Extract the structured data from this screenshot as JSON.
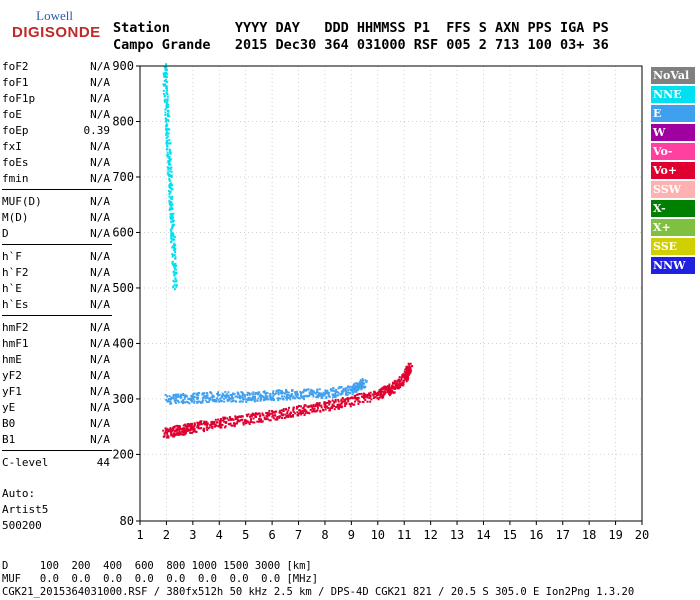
{
  "logo": {
    "line1": "Lowell",
    "line2": "DIGISONDE"
  },
  "header": {
    "row1": "Station        YYYY DAY   DDD HHMMSS P1  FFS S AXN PPS IGA PS",
    "row2": "Campo Grande   2015 Dec30 364 031000 RSF 005 2 713 100 03+ 36"
  },
  "params": [
    {
      "name": "foF2",
      "value": "N/A"
    },
    {
      "name": "foF1",
      "value": "N/A"
    },
    {
      "name": "foF1p",
      "value": "N/A"
    },
    {
      "name": "foE",
      "value": "N/A"
    },
    {
      "name": "foEp",
      "value": "0.39"
    },
    {
      "name": "fxI",
      "value": "N/A"
    },
    {
      "name": "foEs",
      "value": "N/A"
    },
    {
      "name": "fmin",
      "value": "N/A"
    },
    {
      "name": "MUF(D)",
      "value": "N/A"
    },
    {
      "name": "M(D)",
      "value": "N/A"
    },
    {
      "name": "D",
      "value": "N/A"
    },
    {
      "name": "h`F",
      "value": "N/A"
    },
    {
      "name": "h`F2",
      "value": "N/A"
    },
    {
      "name": "h`E",
      "value": "N/A"
    },
    {
      "name": "h`Es",
      "value": "N/A"
    },
    {
      "name": "hmF2",
      "value": "N/A"
    },
    {
      "name": "hmF1",
      "value": "N/A"
    },
    {
      "name": "hmE",
      "value": "N/A"
    },
    {
      "name": "yF2",
      "value": "N/A"
    },
    {
      "name": "yF1",
      "value": "N/A"
    },
    {
      "name": "yE",
      "value": "N/A"
    },
    {
      "name": "B0",
      "value": "N/A"
    },
    {
      "name": "B1",
      "value": "N/A"
    },
    {
      "name": "C-level",
      "value": "44"
    }
  ],
  "auto": {
    "line1": "Auto:",
    "line2": "Artist5",
    "line3": "500200"
  },
  "legend": [
    {
      "label": "NoVal",
      "color": "#808080"
    },
    {
      "label": "NNE",
      "color": "#00e0f0"
    },
    {
      "label": "E",
      "color": "#40a0f0"
    },
    {
      "label": "W",
      "color": "#a000a0"
    },
    {
      "label": "Vo-",
      "color": "#ff40a0"
    },
    {
      "label": "Vo+",
      "color": "#e00030"
    },
    {
      "label": "SSW",
      "color": "#ffb0b0"
    },
    {
      "label": "X-",
      "color": "#008000"
    },
    {
      "label": "X+",
      "color": "#80c040"
    },
    {
      "label": "SSE",
      "color": "#d0d000"
    },
    {
      "label": "NNW",
      "color": "#2020e0"
    }
  ],
  "footer": {
    "row1": "D     100  200  400  600  800 1000 1500 3000 [km]",
    "row2": "MUF   0.0  0.0  0.0  0.0  0.0  0.0  0.0  0.0 [MHz]",
    "file": "CGK21_2015364031000.RSF / 380fx512h 50 kHz 2.5 km / DPS-4D CGK21 821 / 20.5 S 305.0 E Ion2Png 1.3.20"
  },
  "chart_data": {
    "type": "scatter",
    "xlim": [
      1,
      20
    ],
    "ylim": [
      80,
      900
    ],
    "x_ticks": [
      1,
      2,
      3,
      4,
      5,
      6,
      7,
      8,
      9,
      10,
      11,
      12,
      13,
      14,
      15,
      16,
      17,
      18,
      19,
      20
    ],
    "y_ticks": [
      80,
      200,
      300,
      400,
      500,
      600,
      700,
      800,
      900
    ],
    "series": [
      {
        "name": "Vo+",
        "x": [
          1.9,
          2.5,
          3.0,
          4.0,
          5.0,
          6.0,
          7.0,
          8.0,
          9.0,
          10.0,
          10.5,
          11.0,
          11.2
        ],
        "y": [
          240,
          245,
          250,
          258,
          265,
          272,
          280,
          288,
          298,
          310,
          320,
          340,
          360
        ]
      },
      {
        "name": "E",
        "x": [
          2.0,
          3.0,
          4.0,
          5.0,
          6.0,
          7.0,
          8.0,
          9.0,
          9.5
        ],
        "y": [
          300,
          303,
          306,
          305,
          308,
          310,
          312,
          318,
          330
        ]
      },
      {
        "name": "NNE",
        "x": [
          1.9,
          2.0,
          2.1,
          2.2,
          2.3
        ],
        "y": [
          900,
          800,
          700,
          600,
          500
        ]
      }
    ]
  }
}
